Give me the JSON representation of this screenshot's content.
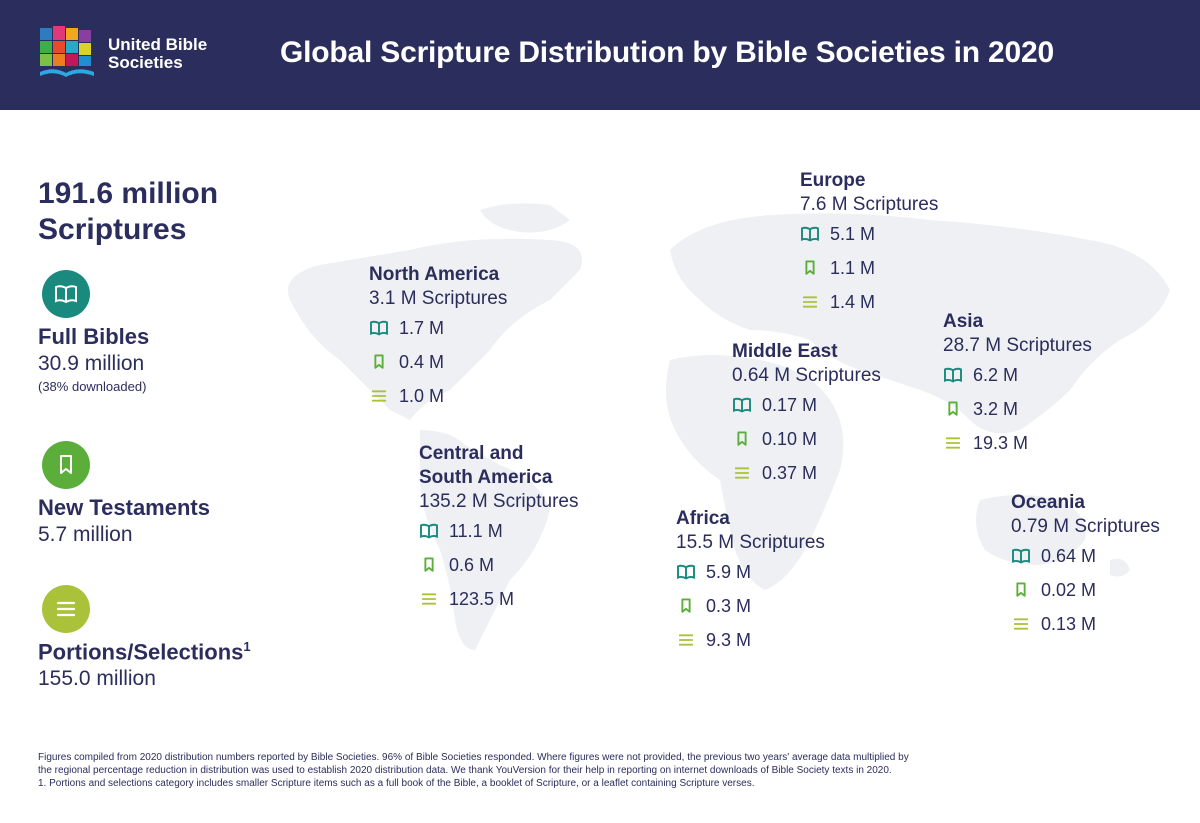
{
  "header": {
    "brand_line1": "United Bible",
    "brand_line2": "Societies",
    "title": "Global Scripture Distribution by Bible Societies in 2020"
  },
  "total": {
    "line1": "191.6 million",
    "line2": "Scriptures"
  },
  "categories": [
    {
      "name": "Full Bibles",
      "value": "30.9 million",
      "note": "(38% downloaded)",
      "icon": "open-book-icon",
      "color": "#1a8a7e"
    },
    {
      "name": "New Testaments",
      "value": "5.7 million",
      "icon": "bookmark-icon",
      "color": "#5cae3a"
    },
    {
      "name": "Portions/Selections",
      "sup": "1",
      "value": "155.0 million",
      "icon": "lines-icon",
      "color": "#a9c23a"
    }
  ],
  "regions": [
    {
      "name": "North America",
      "total": "3.1 M Scriptures",
      "bibles": "1.7 M",
      "nt": "0.4 M",
      "portions": "1.0 M"
    },
    {
      "name_line1": "Central and",
      "name_line2": "South America",
      "total": "135.2 M Scriptures",
      "bibles": "11.1 M",
      "nt": "0.6 M",
      "portions": "123.5 M"
    },
    {
      "name": "Europe",
      "total": "7.6 M Scriptures",
      "bibles": "5.1 M",
      "nt": "1.1 M",
      "portions": "1.4 M"
    },
    {
      "name": "Middle East",
      "total": "0.64 M Scriptures",
      "bibles": "0.17 M",
      "nt": "0.10 M",
      "portions": "0.37 M"
    },
    {
      "name": "Africa",
      "total": "15.5 M Scriptures",
      "bibles": "5.9 M",
      "nt": "0.3 M",
      "portions": "9.3 M"
    },
    {
      "name": "Asia",
      "total": "28.7 M Scriptures",
      "bibles": "6.2 M",
      "nt": "3.2 M",
      "portions": "19.3 M"
    },
    {
      "name": "Oceania",
      "total": "0.79 M Scriptures",
      "bibles": "0.64 M",
      "nt": "0.02 M",
      "portions": "0.13 M"
    }
  ],
  "footer": {
    "line1": "Figures compiled from 2020 distribution numbers reported by Bible Societies. 96% of Bible Societies responded. Where figures were not provided, the previous two years' average data multiplied by",
    "line2": "the regional percentage reduction in distribution was used to establish 2020 distribution data. We thank YouVersion for their help in reporting on internet downloads of Bible Society texts in 2020.",
    "line3": "1. Portions and selections category includes smaller Scripture items such as a full book of the Bible, a booklet of Scripture, or a leaflet containing Scripture verses."
  },
  "colors": {
    "navy": "#2b2d5c",
    "teal": "#1a8a7e",
    "green": "#5cae3a",
    "lime": "#a9c23a",
    "map": "#eef0f3"
  }
}
